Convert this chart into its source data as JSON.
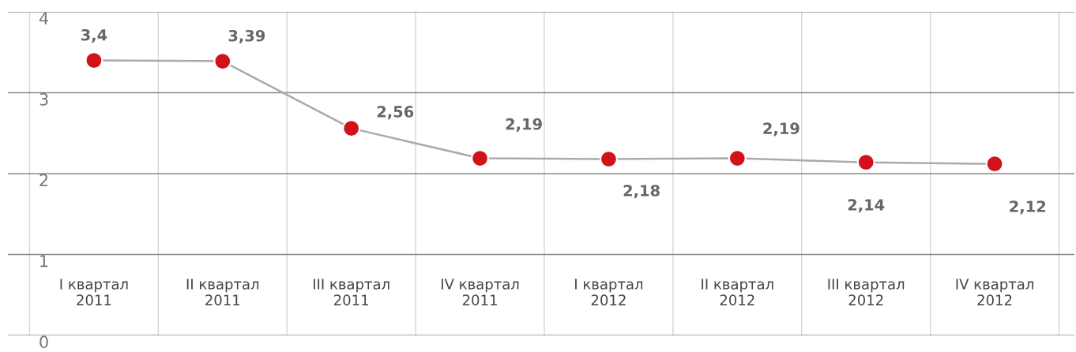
{
  "chart_data": {
    "type": "line",
    "categories": [
      "I квартал\n2011",
      "II квартал\n2011",
      "III квартал\n2011",
      "IV квартал\n2011",
      "I квартал\n2012",
      "II квартал\n2012",
      "III квартал\n2012",
      "IV квартал\n2012"
    ],
    "series": [
      {
        "color": "#aaaaaa",
        "colors": [
          "#d0121b",
          "#d0121b",
          "#d0121b",
          "#d0121b",
          "#d0121b",
          "#d0121b",
          "#d0121b",
          "#d0121b"
        ],
        "values": [
          3.4,
          3.39,
          2.56,
          2.19,
          2.18,
          2.19,
          2.14,
          2.12
        ],
        "value_labels": [
          "3,4",
          "3,39",
          "2,56",
          "2,19",
          "2,18",
          "2,19",
          "2,14",
          "2,12"
        ]
      }
    ],
    "ylim": [
      0,
      4
    ],
    "yticks": [
      0,
      1,
      2,
      3,
      4
    ],
    "grid": true,
    "marker": "circle",
    "line_style": "solid"
  }
}
